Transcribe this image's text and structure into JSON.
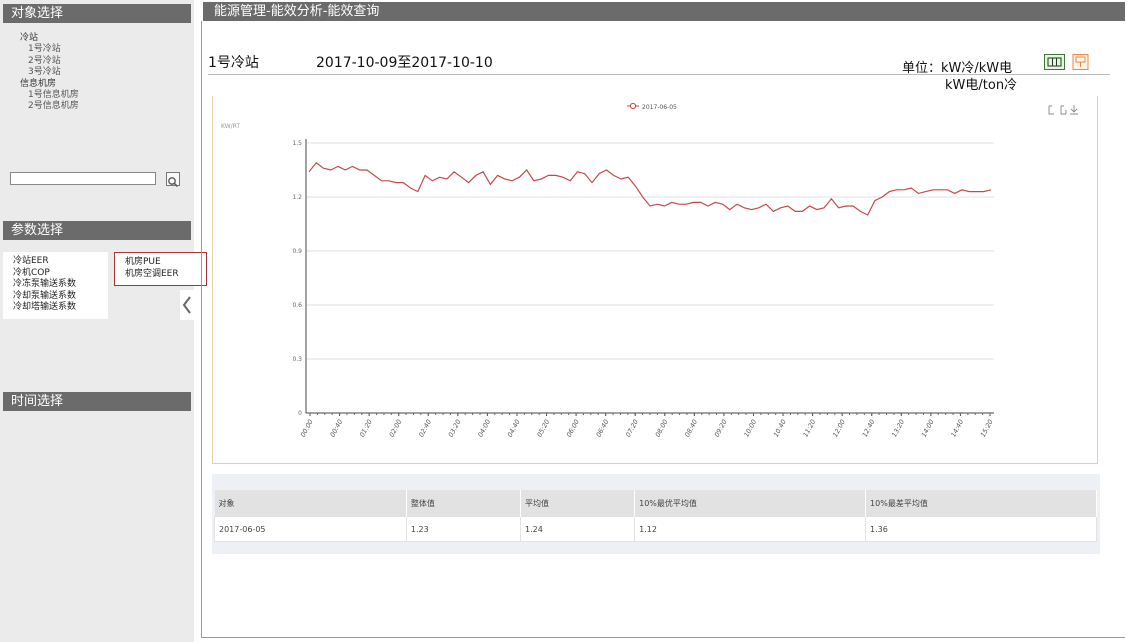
{
  "sidebar": {
    "object_title": "对象选择",
    "tree": [
      {
        "label": "冷站",
        "level": 0
      },
      {
        "label": "1号冷站",
        "level": 1
      },
      {
        "label": "2号冷站",
        "level": 1
      },
      {
        "label": "3号冷站",
        "level": 1
      },
      {
        "label": "信息机房",
        "level": 0
      },
      {
        "label": "1号信息机房",
        "level": 1
      },
      {
        "label": "2号信息机房",
        "level": 1
      }
    ],
    "search": {
      "value": "",
      "placeholder": ""
    },
    "param_title": "参数选择",
    "params_left": [
      "冷站EER",
      "冷机COP",
      "冷冻泵输送系数",
      "冷却泵输送系数",
      "冷却塔输送系数"
    ],
    "params_right": [
      "机房PUE",
      "机房空调EER"
    ],
    "time_title": "时间选择"
  },
  "main": {
    "title": "能源管理-能效分析-能效查询",
    "station": "1号冷站",
    "date_range": "2017-10-09至2017-10-10",
    "unit_label": "单位：kW冷/kW电",
    "unit_label2": "kW电/ton冷"
  },
  "chart_data": {
    "type": "line",
    "legend": [
      "2017-06-05"
    ],
    "ylabel": "KW/RT",
    "ylim": [
      0,
      1.5
    ],
    "yticks": [
      0,
      0.3,
      0.6,
      0.9,
      1.2,
      1.5
    ],
    "xticks": [
      "00:00",
      "00:40",
      "01:20",
      "02:00",
      "02:40",
      "03:20",
      "04:00",
      "04:40",
      "05:20",
      "06:00",
      "06:40",
      "07:20",
      "08:00",
      "08:40",
      "09:20",
      "10:00",
      "10:40",
      "11:20",
      "12:00",
      "12:40",
      "13:20",
      "14:00",
      "14:40",
      "15:20"
    ],
    "series": [
      {
        "name": "2017-06-05",
        "color": "#c8484a",
        "values": [
          1.34,
          1.39,
          1.36,
          1.35,
          1.37,
          1.35,
          1.37,
          1.35,
          1.35,
          1.32,
          1.29,
          1.29,
          1.28,
          1.28,
          1.25,
          1.23,
          1.32,
          1.29,
          1.31,
          1.3,
          1.34,
          1.31,
          1.28,
          1.32,
          1.34,
          1.27,
          1.32,
          1.3,
          1.29,
          1.31,
          1.35,
          1.29,
          1.3,
          1.32,
          1.32,
          1.31,
          1.29,
          1.34,
          1.33,
          1.28,
          1.33,
          1.35,
          1.32,
          1.3,
          1.31,
          1.26,
          1.2,
          1.15,
          1.16,
          1.15,
          1.17,
          1.16,
          1.16,
          1.17,
          1.17,
          1.15,
          1.17,
          1.16,
          1.13,
          1.16,
          1.14,
          1.13,
          1.14,
          1.16,
          1.12,
          1.14,
          1.15,
          1.12,
          1.12,
          1.15,
          1.13,
          1.14,
          1.19,
          1.14,
          1.15,
          1.15,
          1.12,
          1.1,
          1.18,
          1.2,
          1.23,
          1.24,
          1.24,
          1.25,
          1.22,
          1.23,
          1.24,
          1.24,
          1.24,
          1.22,
          1.24,
          1.23,
          1.23,
          1.23,
          1.24
        ]
      }
    ]
  },
  "table": {
    "headers": [
      "对象",
      "整体值",
      "平均值",
      "10%最优平均值",
      "10%最差平均值"
    ],
    "rows": [
      [
        "2017-06-05",
        "1.23",
        "1.24",
        "1.12",
        "1.36"
      ]
    ]
  }
}
